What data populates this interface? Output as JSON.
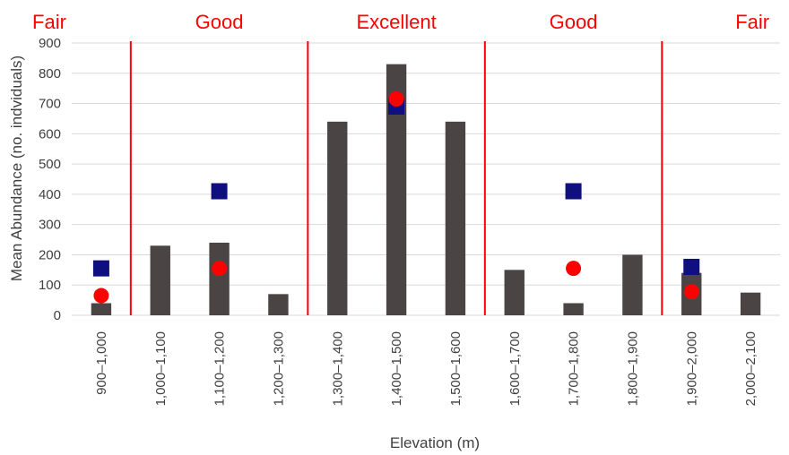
{
  "chart_data": {
    "type": "bar",
    "categories": [
      "900–1,000",
      "1,000–1,100",
      "1,100–1,200",
      "1,200–1,300",
      "1,300–1,400",
      "1,400–1,500",
      "1,500–1,600",
      "1,600–1,700",
      "1,700–1,800",
      "1,800–1,900",
      "1,900–2,000",
      "2,000–2,100"
    ],
    "series": [
      {
        "name": "",
        "mark": "bar",
        "color": "#4a4444",
        "values": [
          40,
          230,
          240,
          70,
          640,
          830,
          640,
          150,
          40,
          200,
          140,
          75
        ]
      },
      {
        "name": "",
        "mark": "square",
        "color": "#0f0f80",
        "points": [
          {
            "x": "900–1,000",
            "y": 155
          },
          {
            "x": "1,100–1,200",
            "y": 410
          },
          {
            "x": "1,400–1,500",
            "y": 690
          },
          {
            "x": "1,700–1,800",
            "y": 410
          },
          {
            "x": "1,900–2,000",
            "y": 160
          }
        ]
      },
      {
        "name": "",
        "mark": "circle",
        "color": "#ff0000",
        "points": [
          {
            "x": "900–1,000",
            "y": 65
          },
          {
            "x": "1,100–1,200",
            "y": 155
          },
          {
            "x": "1,400–1,500",
            "y": 715
          },
          {
            "x": "1,700–1,800",
            "y": 155
          },
          {
            "x": "1,900–2,000",
            "y": 78
          }
        ]
      }
    ],
    "zones": [
      {
        "label": "Fair",
        "from": 0,
        "to": 0.5
      },
      {
        "label": "Good",
        "from": 1,
        "to": 3
      },
      {
        "label": "Excellent",
        "from": 4,
        "to": 6
      },
      {
        "label": "Good",
        "from": 7,
        "to": 9
      },
      {
        "label": "Fair",
        "from": 10,
        "to": 11
      }
    ],
    "zone_boundaries_after_category": [
      0,
      3,
      6,
      9
    ],
    "zone_color": "#ff0000",
    "xlabel": "Elevation (m)",
    "ylabel": "Mean Abundance (no. indviduals)",
    "ylim": [
      0,
      900
    ],
    "yticks": [
      0,
      100,
      200,
      300,
      400,
      500,
      600,
      700,
      800,
      900
    ],
    "grid": true,
    "legend": "none"
  }
}
